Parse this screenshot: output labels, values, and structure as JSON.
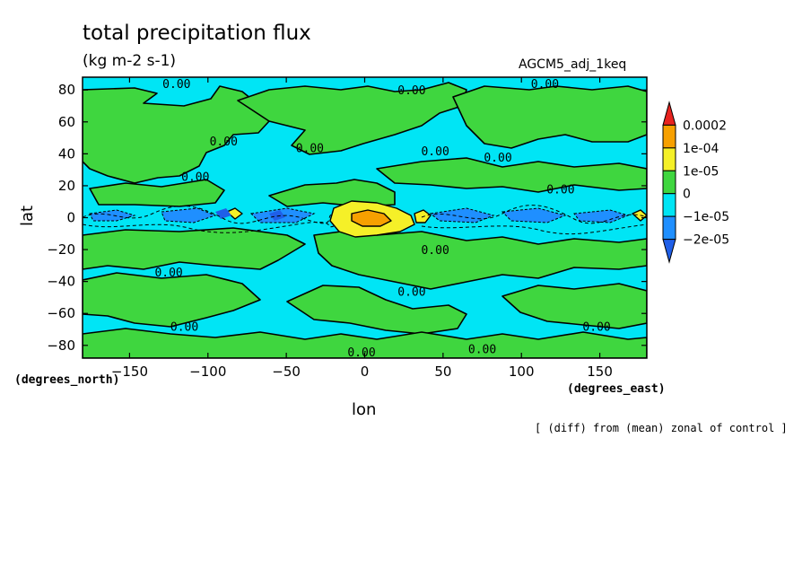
{
  "header": {
    "title": "total precipitation flux",
    "units": "(kg m-2 s-1)",
    "run": "AGCM5_adj_1keq"
  },
  "footer": {
    "note": "[ (diff) from (mean) zonal of control ]"
  },
  "chart_data": {
    "type": "heatmap",
    "xlabel": "lon",
    "ylabel": "lat",
    "x_units": "(degrees_east)",
    "y_units": "(degrees_north)",
    "xlim": [
      -180,
      180
    ],
    "ylim": [
      -88,
      88
    ],
    "x_ticks": [
      -150,
      -100,
      -50,
      0,
      50,
      100,
      150
    ],
    "y_ticks": [
      -80,
      -60,
      -40,
      -20,
      0,
      20,
      40,
      60,
      80
    ],
    "colorbar": {
      "labels": [
        "0.0002",
        "1e-04",
        "1e-05",
        "0",
        "-1e-05",
        "-2e-05"
      ],
      "colors": [
        "#e8231f",
        "#f7a000",
        "#f5f028",
        "#3fd63f",
        "#00e5f5",
        "#1f8fff",
        "#1f5fe8"
      ]
    },
    "contour_labels": [
      {
        "text": "0.00",
        "lon": -120,
        "lat": 84
      },
      {
        "text": "0.00",
        "lon": 30,
        "lat": 80
      },
      {
        "text": "0.00",
        "lon": 115,
        "lat": 84
      },
      {
        "text": "0.00",
        "lon": -90,
        "lat": 48
      },
      {
        "text": "0.00",
        "lon": -35,
        "lat": 44
      },
      {
        "text": "0.00",
        "lon": 45,
        "lat": 42
      },
      {
        "text": "0.00",
        "lon": 85,
        "lat": 38
      },
      {
        "text": "0.00",
        "lon": -108,
        "lat": 26
      },
      {
        "text": "0.00",
        "lon": 125,
        "lat": 18
      },
      {
        "text": "0.00",
        "lon": 45,
        "lat": -20
      },
      {
        "text": "0.00",
        "lon": -125,
        "lat": -34
      },
      {
        "text": "0.00",
        "lon": 30,
        "lat": -46
      },
      {
        "text": "0.00",
        "lon": -115,
        "lat": -68
      },
      {
        "text": "0.00",
        "lon": 148,
        "lat": -68
      },
      {
        "text": "0.00",
        "lon": -2,
        "lat": -84
      },
      {
        "text": "0.00",
        "lon": 75,
        "lat": -82
      }
    ]
  }
}
